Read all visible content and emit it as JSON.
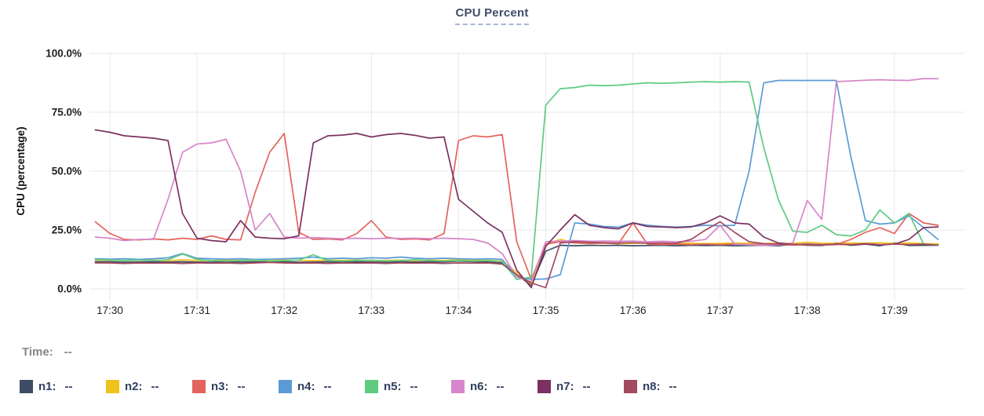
{
  "title": "CPU Percent",
  "time_row": {
    "label": "Time:",
    "value": "--"
  },
  "chart_data": {
    "type": "line",
    "title": "CPU Percent",
    "xlabel": "",
    "ylabel": "CPU (percentage)",
    "ylim": [
      0,
      100
    ],
    "grid": true,
    "legend_position": "bottom",
    "y_ticks": [
      {
        "label": "0.0%",
        "value": 0
      },
      {
        "label": "25.0%",
        "value": 25
      },
      {
        "label": "50.0%",
        "value": 50
      },
      {
        "label": "75.0%",
        "value": 75
      },
      {
        "label": "100.0%",
        "value": 100
      }
    ],
    "x_ticks": [
      "17:30",
      "17:31",
      "17:32",
      "17:33",
      "17:34",
      "17:35",
      "17:36",
      "17:37",
      "17:38",
      "17:39"
    ],
    "x_start_min": -0.1667,
    "x_step_min": 0.16667,
    "series": [
      {
        "name": "n1",
        "value": "--",
        "color": "#3e4c66",
        "values": [
          11.5,
          11.5,
          11.3,
          11.4,
          11.5,
          11.4,
          11.5,
          11.4,
          11.3,
          11.5,
          11.4,
          11.5,
          11.4,
          11.5,
          11.3,
          11.4,
          11.5,
          11.4,
          11.5,
          11.4,
          11.3,
          11.5,
          11.4,
          11.5,
          11.4,
          11.8,
          11.5,
          11.4,
          11.0,
          6.0,
          1.5,
          16.0,
          18.5,
          18.3,
          18.5,
          18.4,
          18.5,
          18.3,
          18.4,
          18.5,
          18.3,
          18.5,
          18.4,
          18.5,
          18.3,
          18.4,
          18.5,
          18.3,
          19.0,
          18.5,
          18.4,
          19.5,
          18.5,
          19.0,
          18.3,
          19.5,
          18.4,
          18.5,
          18.5
        ]
      },
      {
        "name": "n2",
        "value": "--",
        "color": "#f2c21c",
        "values": [
          12.2,
          12.2,
          12.0,
          12.1,
          12.2,
          12.0,
          12.3,
          12.1,
          12.0,
          12.2,
          12.1,
          12.2,
          12.0,
          12.2,
          12.1,
          12.0,
          12.2,
          12.1,
          12.2,
          12.0,
          12.1,
          12.2,
          12.0,
          12.2,
          12.1,
          12.4,
          12.2,
          12.1,
          11.8,
          7.0,
          2.0,
          19.0,
          21.0,
          19.5,
          19.3,
          19.4,
          19.2,
          19.3,
          19.4,
          19.2,
          19.3,
          19.4,
          19.2,
          19.3,
          19.5,
          19.3,
          19.2,
          19.4,
          19.3,
          19.8,
          19.4,
          19.3,
          19.5,
          19.4,
          19.6,
          19.3,
          19.5,
          19.2,
          19.0
        ]
      },
      {
        "name": "n3",
        "value": "--",
        "color": "#e4635c",
        "values": [
          28.5,
          23.5,
          21.0,
          20.8,
          21.2,
          20.8,
          21.5,
          21.0,
          22.5,
          21.0,
          20.8,
          41.0,
          58.0,
          66.0,
          24.0,
          21.0,
          21.2,
          20.8,
          23.5,
          29.0,
          22.0,
          21.0,
          21.2,
          20.8,
          23.5,
          63.0,
          65.0,
          64.5,
          65.5,
          20.0,
          4.0,
          19.0,
          20.0,
          19.5,
          19.3,
          19.4,
          19.2,
          28.0,
          19.0,
          18.8,
          19.0,
          18.8,
          19.0,
          18.8,
          19.0,
          18.8,
          19.0,
          18.8,
          18.6,
          18.8,
          18.6,
          18.8,
          21.0,
          24.0,
          26.0,
          23.5,
          32.0,
          28.0,
          27.0
        ]
      },
      {
        "name": "n4",
        "value": "--",
        "color": "#5b9bd5",
        "values": [
          12.8,
          12.6,
          12.8,
          12.5,
          12.8,
          13.2,
          15.0,
          13.0,
          12.8,
          12.6,
          12.8,
          12.5,
          12.6,
          12.8,
          13.0,
          13.5,
          12.8,
          13.0,
          12.8,
          13.2,
          13.0,
          13.5,
          13.0,
          12.8,
          13.0,
          12.8,
          12.6,
          12.8,
          12.5,
          5.0,
          4.0,
          4.2,
          6.0,
          28.0,
          27.5,
          26.5,
          26.2,
          28.0,
          27.0,
          26.5,
          26.2,
          26.5,
          27.0,
          26.8,
          27.0,
          50.0,
          87.5,
          88.5,
          88.5,
          88.5,
          88.5,
          88.5,
          56.0,
          29.0,
          27.5,
          28.0,
          31.0,
          26.0,
          21.0
        ]
      },
      {
        "name": "n5",
        "value": "--",
        "color": "#5ecb81",
        "values": [
          12.5,
          12.3,
          12.0,
          12.2,
          12.0,
          12.4,
          14.8,
          12.5,
          12.0,
          11.8,
          12.0,
          12.3,
          11.8,
          12.0,
          12.2,
          14.5,
          12.0,
          11.8,
          12.0,
          12.2,
          11.8,
          12.0,
          12.4,
          12.0,
          11.8,
          12.0,
          11.8,
          12.0,
          11.5,
          4.0,
          5.0,
          78.0,
          85.0,
          85.5,
          86.5,
          86.3,
          86.5,
          87.0,
          87.5,
          87.3,
          87.5,
          87.8,
          88.0,
          87.8,
          88.0,
          87.8,
          60.0,
          38.0,
          24.5,
          24.0,
          27.0,
          23.0,
          22.5,
          25.0,
          33.5,
          28.0,
          32.0,
          19.0,
          18.5
        ]
      },
      {
        "name": "n6",
        "value": "--",
        "color": "#d686ca",
        "values": [
          22.0,
          21.5,
          20.5,
          21.0,
          21.0,
          38.0,
          58.0,
          61.5,
          62.0,
          63.5,
          50.0,
          25.0,
          32.0,
          22.0,
          21.5,
          21.8,
          21.5,
          21.3,
          21.5,
          21.3,
          21.5,
          21.4,
          21.5,
          21.3,
          21.5,
          21.3,
          21.0,
          19.5,
          15.0,
          5.0,
          3.0,
          20.0,
          20.3,
          20.5,
          20.2,
          20.3,
          20.2,
          20.3,
          20.0,
          20.2,
          20.0,
          20.2,
          21.0,
          27.0,
          19.0,
          18.7,
          18.5,
          18.6,
          19.5,
          37.5,
          29.5,
          88.0,
          88.3,
          88.6,
          88.8,
          88.6,
          88.5,
          89.3,
          89.2
        ]
      },
      {
        "name": "n7",
        "value": "--",
        "color": "#7b3162",
        "values": [
          67.5,
          66.5,
          65.0,
          64.5,
          64.0,
          63.0,
          32.0,
          21.5,
          20.5,
          20.0,
          29.0,
          22.0,
          21.5,
          21.3,
          22.5,
          62.0,
          65.0,
          65.3,
          66.0,
          64.5,
          65.5,
          66.0,
          65.2,
          64.0,
          64.5,
          38.0,
          33.0,
          28.0,
          24.0,
          8.0,
          0.5,
          18.0,
          25.0,
          31.5,
          27.0,
          26.0,
          25.5,
          28.0,
          26.5,
          26.3,
          26.0,
          26.3,
          28.0,
          31.0,
          28.0,
          27.5,
          22.0,
          19.5,
          18.8,
          19.0,
          18.7,
          18.9,
          18.7,
          19.0,
          18.7,
          19.0,
          21.0,
          26.0,
          26.3
        ]
      },
      {
        "name": "n8",
        "value": "--",
        "color": "#a34a5e",
        "values": [
          11.0,
          11.0,
          10.8,
          11.0,
          10.9,
          11.0,
          10.8,
          11.0,
          10.9,
          11.0,
          10.8,
          11.0,
          11.2,
          11.0,
          10.9,
          11.0,
          10.8,
          11.0,
          10.9,
          11.0,
          10.8,
          11.0,
          10.9,
          11.0,
          10.8,
          11.0,
          10.9,
          11.0,
          10.5,
          6.0,
          2.5,
          0.5,
          19.5,
          20.0,
          19.8,
          19.6,
          19.5,
          19.6,
          19.4,
          19.5,
          19.4,
          21.0,
          25.0,
          28.5,
          24.0,
          20.0,
          19.2,
          19.0,
          18.8,
          19.0,
          18.8,
          19.0,
          18.8,
          19.2,
          18.8,
          19.0,
          18.8,
          19.0,
          18.6
        ]
      }
    ]
  }
}
